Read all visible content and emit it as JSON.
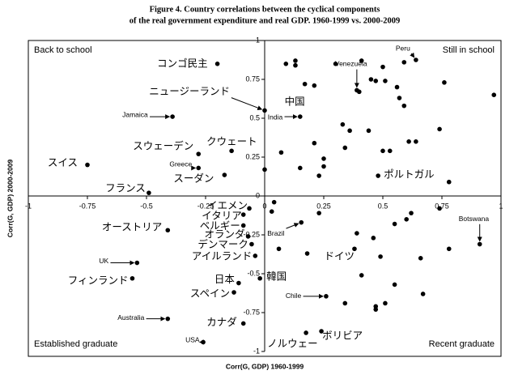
{
  "chart_data": {
    "type": "scatter",
    "title": "Figure 4. Country correlations between the cyclical components",
    "subtitle": "of the real government expenditure and real GDP. 1960-1999 vs. 2000-2009",
    "x_label": "Corr(G, GDP) 1960-1999",
    "y_label": "Corr(G, GDP) 2000-2009",
    "quadrants": [
      "Back to school",
      "Still in school",
      "Established graduate",
      "Recent graduate"
    ],
    "xlim": [
      -1,
      1
    ],
    "ylim": [
      -1,
      1
    ],
    "xticks": [
      -1,
      -0.75,
      -0.5,
      -0.25,
      0,
      0.25,
      0.5,
      0.75,
      1
    ],
    "yticks": [
      1,
      0.75,
      0.5,
      0.25,
      0,
      -0.25,
      -0.5,
      -0.75,
      -1
    ],
    "color": "#000000",
    "x": [
      0.64,
      0.39,
      -0.2,
      0.0,
      0.17,
      0.15,
      -0.39,
      -0.14,
      -0.28,
      -0.28,
      -0.75,
      -0.17,
      -0.49,
      0.48,
      -0.065,
      -0.09,
      -0.09,
      -0.07,
      -0.055,
      -0.04,
      -0.41,
      0.155,
      0.91,
      0.18,
      -0.54,
      -0.56,
      -0.11,
      -0.02,
      -0.13,
      0.26,
      -0.41,
      -0.09,
      -0.26,
      0.175,
      0.24,
      0.09,
      0.13,
      0.13,
      0.3,
      0.41,
      0.5,
      0.59,
      0.45,
      0.47,
      0.51,
      0.21,
      0.56,
      0.76,
      0.97,
      0.57,
      0.59,
      0.4,
      0.33,
      0.36,
      0.21,
      0.44,
      0.07,
      0.25,
      0.5,
      0.53,
      0.61,
      0.64,
      0.74,
      0.0,
      0.15,
      0.23,
      0.25,
      0.34,
      0.78,
      0.04,
      0.03,
      0.23,
      0.39,
      0.46,
      0.6,
      0.62,
      0.55,
      0.38,
      0.06,
      0.49,
      0.74,
      0.78,
      0.66,
      0.55,
      0.41,
      0.51,
      0.47,
      0.47,
      0.34,
      0.67
    ],
    "y": [
      0.875,
      0.68,
      0.85,
      0.55,
      0.72,
      0.51,
      0.51,
      0.29,
      0.27,
      0.18,
      0.2,
      0.135,
      0.02,
      0.13,
      -0.08,
      -0.12,
      -0.19,
      -0.26,
      -0.31,
      -0.385,
      -0.22,
      -0.17,
      -0.31,
      -0.37,
      -0.43,
      -0.53,
      -0.56,
      -0.53,
      -0.62,
      -0.645,
      -0.79,
      -0.82,
      -0.94,
      -0.88,
      -0.87,
      0.85,
      0.87,
      0.84,
      0.85,
      0.87,
      0.83,
      0.86,
      0.75,
      0.74,
      0.74,
      0.71,
      0.7,
      0.73,
      0.65,
      0.63,
      0.58,
      0.67,
      0.46,
      0.42,
      0.34,
      0.42,
      0.28,
      0.24,
      0.29,
      0.29,
      0.35,
      0.35,
      0.43,
      0.17,
      0.18,
      0.13,
      0.19,
      0.31,
      0.09,
      -0.04,
      -0.1,
      -0.11,
      -0.24,
      -0.27,
      -0.15,
      -0.11,
      -0.18,
      -0.34,
      -0.34,
      -0.39,
      -0.08,
      -0.34,
      -0.4,
      -0.57,
      -0.51,
      -0.69,
      -0.71,
      -0.73,
      -0.69,
      -0.63
    ],
    "labels": [
      "Peru",
      "Venezuela",
      "コンゴ民主",
      "ニュージーランド",
      "中国",
      "India",
      "Jamaica",
      "クウェート",
      "スウェーデン",
      "Greece",
      "スイス",
      "スーダン",
      "フランス",
      "ポルトガル",
      "イエメン",
      "イタリア",
      "ベルギー",
      "オランダ",
      "デンマーク",
      "アイルランド",
      "オーストリア",
      "Brazil",
      "Botswana",
      "ドイツ",
      "UK",
      "フィンランド",
      "日本",
      "韓国",
      "スペイン",
      "Chile",
      "Australia",
      "カナダ",
      "USA",
      "ノルウェー",
      "ボリビア",
      null,
      null,
      null,
      null,
      null,
      null,
      null,
      null,
      null,
      null,
      null,
      null,
      null,
      null,
      null,
      null,
      null,
      null,
      null,
      null,
      null,
      null,
      null,
      null,
      null,
      null,
      null,
      null,
      null,
      null,
      null,
      null,
      null,
      null,
      null,
      null,
      null,
      null,
      null,
      null,
      null,
      null,
      null,
      null,
      null,
      null,
      null,
      null,
      null,
      null,
      null,
      null,
      null,
      null,
      null
    ]
  }
}
